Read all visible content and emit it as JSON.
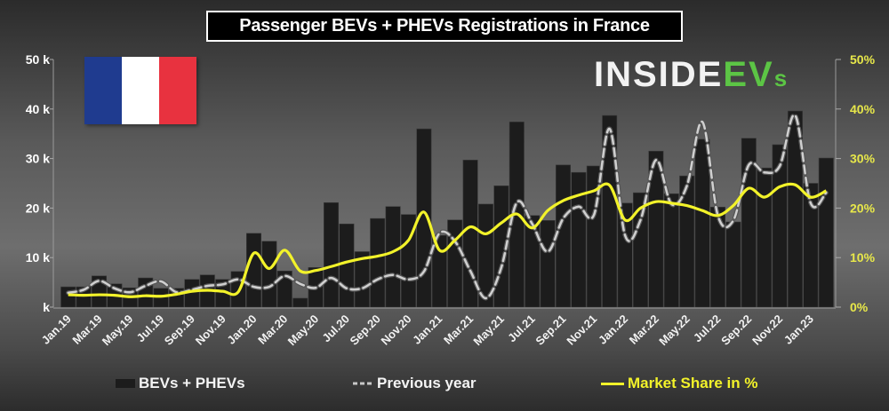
{
  "title": "Passenger BEVs + PHEVs Registrations in France",
  "logo": {
    "text_main": "INSIDE",
    "text_accent": "EV",
    "text_small": "s",
    "accent_color": "#5cc545"
  },
  "flag": {
    "country": "France",
    "colors": [
      "#1f3b8f",
      "#ffffff",
      "#e8323f"
    ]
  },
  "legend": {
    "bars": "BEVs + PHEVs",
    "previous": "Previous year",
    "share": "Market Share in %"
  },
  "colors": {
    "bars": "#1c1c1c",
    "previous": "#d0d0d0",
    "share": "#f2f22a",
    "left_axis": "#ffffff",
    "right_axis": "#e8e84a"
  },
  "chart_data": {
    "type": "bar",
    "title": "Passenger BEVs + PHEVs Registrations in France",
    "categories": [
      "Jan.19",
      "Feb.19",
      "Mar.19",
      "Apr.19",
      "May.19",
      "Jun.19",
      "Jul.19",
      "Aug.19",
      "Sep.19",
      "Oct.19",
      "Nov.19",
      "Dec.19",
      "Jan.20",
      "Feb.20",
      "Mar.20",
      "Apr.20",
      "May.20",
      "Jun.20",
      "Jul.20",
      "Aug.20",
      "Sep.20",
      "Oct.20",
      "Nov.20",
      "Dec.20",
      "Jan.21",
      "Feb.21",
      "Mar.21",
      "Apr.21",
      "May.21",
      "Jun.21",
      "Jul.21",
      "Aug.21",
      "Sep.21",
      "Oct.21",
      "Nov.21",
      "Dec.21",
      "Jan.22",
      "Feb.22",
      "Mar.22",
      "Apr.22",
      "May.22",
      "Jun.22",
      "Jul.22",
      "Aug.22",
      "Sep.22",
      "Oct.22",
      "Nov.22",
      "Dec.22",
      "Jan.23",
      "Feb.23"
    ],
    "tick_labels": [
      "Jan.19",
      "Mar.19",
      "May.19",
      "Jul.19",
      "Sep.19",
      "Nov.19",
      "Jan.20",
      "Mar.20",
      "May.20",
      "Jul.20",
      "Sep.20",
      "Nov.20",
      "Jan.21",
      "Mar.21",
      "May.21",
      "Jul.21",
      "Sep.21",
      "Nov.21",
      "Jan.22",
      "Mar.22",
      "May.22",
      "Jul.22",
      "Sep.22",
      "Nov.22",
      "Jan.23"
    ],
    "series": [
      {
        "name": "BEVs + PHEVs",
        "type": "bar",
        "axis": "left",
        "values": [
          4.1,
          4.1,
          6.3,
          4.7,
          3.9,
          5.9,
          3.8,
          3.8,
          5.6,
          6.5,
          5.6,
          7.2,
          14.9,
          13.3,
          7.3,
          1.8,
          8.0,
          21.1,
          16.8,
          11.2,
          17.9,
          20.3,
          18.7,
          36.0,
          14.5,
          17.6,
          29.7,
          20.8,
          24.5,
          37.4,
          18.5,
          17.5,
          28.7,
          27.2,
          28.5,
          38.7,
          21.0,
          23.1,
          31.5,
          22.9,
          26.5,
          33.9,
          20.2,
          17.2,
          34.1,
          28.1,
          32.8,
          39.6,
          25.0,
          30.1
        ]
      },
      {
        "name": "Previous year",
        "type": "line",
        "style": "dashed",
        "axis": "left",
        "values": [
          2.9,
          3.5,
          5.3,
          3.8,
          3.0,
          4.3,
          5.2,
          3.0,
          3.5,
          4.3,
          4.6,
          5.6,
          4.1,
          4.1,
          6.3,
          4.7,
          3.9,
          5.9,
          3.8,
          3.8,
          5.6,
          6.5,
          5.6,
          7.2,
          14.9,
          13.3,
          7.3,
          1.8,
          8.0,
          21.1,
          16.8,
          11.2,
          17.9,
          20.3,
          18.7,
          36.0,
          14.5,
          17.6,
          29.7,
          20.8,
          24.5,
          37.4,
          18.5,
          17.5,
          28.7,
          27.2,
          28.5,
          38.7,
          21.0,
          23.1
        ]
      },
      {
        "name": "Market Share in %",
        "type": "line",
        "axis": "right",
        "values": [
          2.5,
          2.4,
          2.5,
          2.4,
          2.1,
          2.3,
          2.2,
          2.6,
          3.2,
          3.4,
          3.2,
          3.1,
          10.9,
          7.8,
          11.5,
          7.3,
          7.4,
          8.2,
          9.1,
          9.8,
          10.3,
          11.2,
          13.5,
          19.2,
          11.5,
          13.5,
          16.2,
          14.8,
          17.0,
          18.8,
          16.0,
          19.5,
          21.5,
          22.6,
          23.5,
          24.6,
          17.6,
          20.0,
          21.3,
          21.0,
          20.5,
          19.5,
          18.5,
          20.5,
          24.0,
          22.2,
          24.3,
          24.7,
          22.2,
          23.5
        ]
      }
    ],
    "left_axis": {
      "unit": "thousands",
      "ylim": [
        0,
        50
      ],
      "ticks": [
        "k",
        "10 k",
        "20 k",
        "30 k",
        "40 k",
        "50 k"
      ]
    },
    "right_axis": {
      "unit": "%",
      "ylim": [
        0,
        50
      ],
      "ticks": [
        "0%",
        "10%",
        "20%",
        "30%",
        "40%",
        "50%"
      ]
    },
    "xlabel": "",
    "ylabel": "",
    "grid": false,
    "legend_position": "bottom"
  }
}
